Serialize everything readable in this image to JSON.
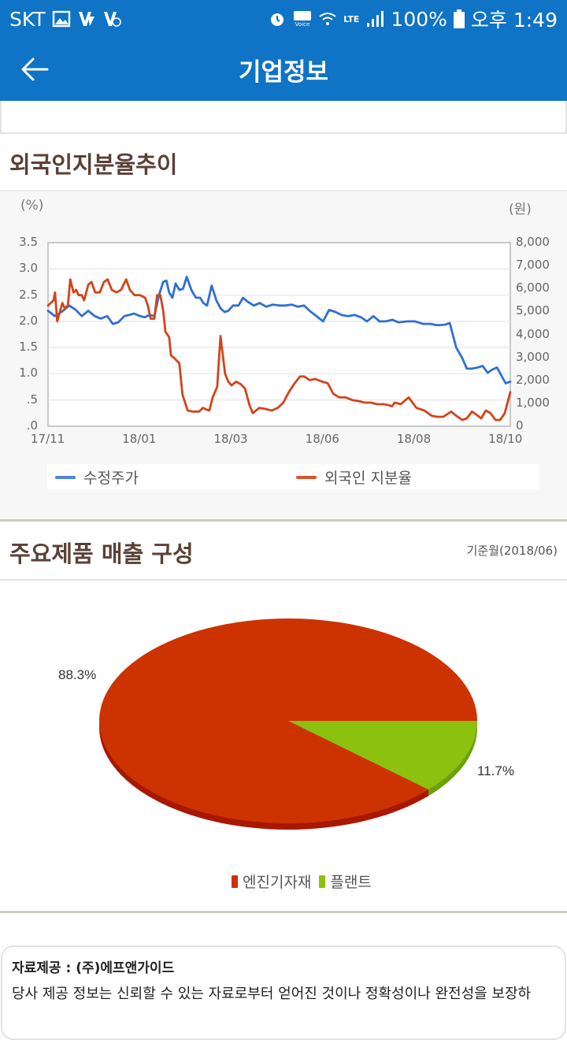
{
  "status_bar": {
    "carrier": "SKT",
    "battery": "100%",
    "time": "오후 1:49",
    "network": "LTE",
    "icons_left": [
      "gallery-icon",
      "v-app-icon",
      "v-app-badge-icon"
    ],
    "icons_right": [
      "alarm-icon",
      "hd-voice-icon",
      "wifi-icon",
      "lte-icon",
      "signal-icon",
      "battery-icon"
    ]
  },
  "app_bar": {
    "title": "기업정보",
    "back_icon": "arrow-left-icon"
  },
  "section_foreign": {
    "title": "외국인지분율추이"
  },
  "section_products": {
    "title": "주요제품 매출 구성",
    "as_of": "기준월(2018/06)"
  },
  "source": {
    "provider": "자료제공 : (주)에프앤가이드",
    "disclaimer": "당사 제공 정보는 신뢰할 수 있는 자료로부터 얻어진 것이나 정확성이나 완전성을 보장하"
  },
  "colors": {
    "brand": "#0f73c6",
    "title_brown": "#5a4036",
    "price_blue": "#2f6fd6",
    "foreign_red": "#d2441a",
    "pie_red": "#cc3300",
    "pie_green": "#8cc10f"
  },
  "chart_data": [
    {
      "type": "line",
      "title": "외국인지분율추이",
      "xlabel": "",
      "ylabel_left": "(%)",
      "ylabel_right": "(원)",
      "x_ticks": [
        "17/11",
        "18/01",
        "18/03",
        "18/06",
        "18/08",
        "18/10"
      ],
      "x_tick_pos": [
        0.0,
        0.198,
        0.396,
        0.594,
        0.792,
        0.99
      ],
      "y_left_ticks": [
        "3.5",
        "3.0",
        "2.5",
        "2.0",
        "1.5",
        "1.0",
        ".5",
        ".0"
      ],
      "y_left_range": [
        0,
        3.5
      ],
      "y_right_ticks": [
        "8,000",
        "7,000",
        "6,000",
        "5,000",
        "4,000",
        "3,000",
        "2,000",
        "1,000",
        "0"
      ],
      "y_right_range": [
        0,
        8000
      ],
      "grid": true,
      "legend_position": "bottom",
      "legend": [
        "수정주가",
        "외국인 지분율"
      ],
      "series": [
        {
          "name": "수정주가",
          "axis": "right",
          "unit": "원",
          "color": "#2f6fd6",
          "x": [
            0,
            0.015,
            0.029,
            0.046,
            0.06,
            0.073,
            0.087,
            0.101,
            0.114,
            0.128,
            0.14,
            0.152,
            0.165,
            0.176,
            0.186,
            0.199,
            0.209,
            0.22,
            0.23,
            0.24,
            0.249,
            0.256,
            0.262,
            0.269,
            0.276,
            0.284,
            0.292,
            0.3,
            0.31,
            0.32,
            0.329,
            0.336,
            0.344,
            0.354,
            0.364,
            0.373,
            0.382,
            0.39,
            0.4,
            0.412,
            0.422,
            0.431,
            0.445,
            0.458,
            0.472,
            0.486,
            0.5,
            0.513,
            0.527,
            0.54,
            0.554,
            0.566,
            0.595,
            0.608,
            0.622,
            0.635,
            0.649,
            0.663,
            0.677,
            0.69,
            0.704,
            0.717,
            0.731,
            0.745,
            0.758,
            0.777,
            0.794,
            0.811,
            0.828,
            0.84,
            0.848,
            0.859,
            0.869,
            0.883,
            0.896,
            0.906,
            0.917,
            0.93,
            0.94,
            0.951,
            0.961,
            0.971,
            0.99,
            1.0
          ],
          "values": [
            5030,
            4800,
            4980,
            5260,
            5070,
            4800,
            5030,
            4800,
            4690,
            4800,
            4460,
            4530,
            4800,
            4850,
            4910,
            4800,
            4750,
            4850,
            4800,
            5710,
            6290,
            6350,
            5830,
            5600,
            6220,
            5940,
            5990,
            6510,
            5940,
            5600,
            5600,
            5370,
            5260,
            6130,
            5490,
            5140,
            4980,
            5030,
            5260,
            5260,
            5600,
            5440,
            5260,
            5370,
            5210,
            5300,
            5260,
            5260,
            5300,
            5210,
            5260,
            5030,
            4570,
            5070,
            4980,
            4850,
            4800,
            4850,
            4750,
            4570,
            4800,
            4570,
            4570,
            4640,
            4530,
            4570,
            4570,
            4460,
            4460,
            4410,
            4410,
            4430,
            4500,
            3430,
            2970,
            2510,
            2510,
            2560,
            2630,
            2330,
            2470,
            2560,
            1870,
            1940
          ]
        },
        {
          "name": "외국인 지분율",
          "axis": "left",
          "unit": "%",
          "color": "#d2441a",
          "x": [
            0,
            0.012,
            0.015,
            0.02,
            0.026,
            0.031,
            0.036,
            0.043,
            0.048,
            0.055,
            0.061,
            0.066,
            0.073,
            0.078,
            0.087,
            0.094,
            0.102,
            0.112,
            0.121,
            0.129,
            0.138,
            0.148,
            0.158,
            0.169,
            0.177,
            0.187,
            0.199,
            0.21,
            0.216,
            0.222,
            0.23,
            0.236,
            0.243,
            0.249,
            0.254,
            0.262,
            0.266,
            0.273,
            0.284,
            0.291,
            0.302,
            0.313,
            0.32,
            0.327,
            0.335,
            0.342,
            0.349,
            0.356,
            0.366,
            0.373,
            0.383,
            0.39,
            0.397,
            0.407,
            0.417,
            0.426,
            0.436,
            0.443,
            0.457,
            0.47,
            0.484,
            0.497,
            0.509,
            0.521,
            0.532,
            0.545,
            0.554,
            0.566,
            0.578,
            0.593,
            0.605,
            0.617,
            0.63,
            0.644,
            0.658,
            0.671,
            0.685,
            0.698,
            0.712,
            0.726,
            0.738,
            0.744,
            0.75,
            0.763,
            0.78,
            0.797,
            0.814,
            0.83,
            0.842,
            0.855,
            0.872,
            0.883,
            0.896,
            0.906,
            0.917,
            0.927,
            0.937,
            0.947,
            0.957,
            0.968,
            0.978,
            0.988,
            1.0
          ],
          "values": [
            2.3,
            2.4,
            2.55,
            2.0,
            2.2,
            2.35,
            2.25,
            2.3,
            2.8,
            2.55,
            2.6,
            2.5,
            2.5,
            2.4,
            2.7,
            2.75,
            2.55,
            2.55,
            2.75,
            2.8,
            2.6,
            2.55,
            2.6,
            2.8,
            2.6,
            2.5,
            2.5,
            2.45,
            2.3,
            2.05,
            2.05,
            2.5,
            2.5,
            2.2,
            1.8,
            1.7,
            1.35,
            1.3,
            1.2,
            0.6,
            0.3,
            0.28,
            0.28,
            0.28,
            0.35,
            0.32,
            0.3,
            0.55,
            0.75,
            1.72,
            1.0,
            0.85,
            0.78,
            0.85,
            0.8,
            0.72,
            0.4,
            0.25,
            0.35,
            0.33,
            0.3,
            0.35,
            0.45,
            0.65,
            0.8,
            0.95,
            0.95,
            0.88,
            0.9,
            0.85,
            0.82,
            0.62,
            0.55,
            0.55,
            0.5,
            0.48,
            0.45,
            0.45,
            0.42,
            0.42,
            0.4,
            0.38,
            0.45,
            0.42,
            0.55,
            0.35,
            0.3,
            0.2,
            0.18,
            0.18,
            0.28,
            0.2,
            0.12,
            0.15,
            0.28,
            0.22,
            0.15,
            0.3,
            0.25,
            0.12,
            0.12,
            0.25,
            0.65
          ]
        }
      ]
    },
    {
      "type": "pie",
      "title": "주요제품 매출 구성",
      "subtitle": "기준월(2018/06)",
      "categories": [
        "엔진기자재",
        "플랜트"
      ],
      "values": [
        88.3,
        11.7
      ],
      "labels": [
        "88.3%",
        "11.7%"
      ],
      "colors": [
        "#cc3300",
        "#8cc10f"
      ],
      "legend_position": "bottom"
    }
  ]
}
